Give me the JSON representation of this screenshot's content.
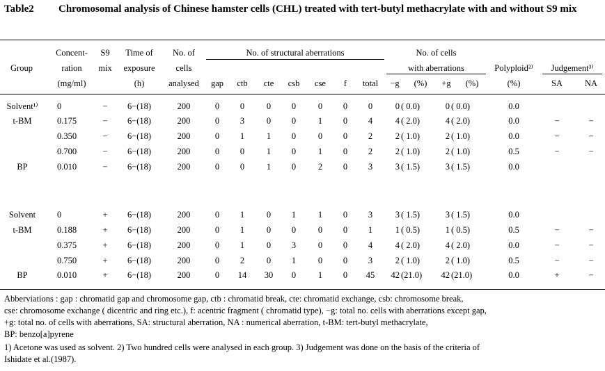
{
  "table_no": "Table2",
  "title": "Chromosomal analysis of Chinese hamster cells (CHL) treated with tert-butyl methacrylate with and without S9 mix",
  "header": {
    "group": "Group",
    "conc": [
      "Concent-",
      "ration",
      "(mg/ml)"
    ],
    "s9": [
      "S9",
      "mix"
    ],
    "time": [
      "Time of",
      "exposure",
      "(h)"
    ],
    "cells": [
      "No. of",
      "cells",
      "analysed"
    ],
    "struct_title": "No. of structural aberrations",
    "struct_cols": [
      "gap",
      "ctb",
      "cte",
      "csb",
      "cse",
      "f",
      "total"
    ],
    "with_title": [
      "No. of cells",
      "with aberrations"
    ],
    "with_cols": [
      "−g",
      "(%)",
      "+g",
      "(%)"
    ],
    "polyploid": [
      "Polyploid²⁾",
      "(%)"
    ],
    "judgement": "Judgement³⁾",
    "judge_cols": [
      "SA",
      "NA"
    ]
  },
  "rows": [
    {
      "group": "Solvent¹⁾",
      "conc": "0",
      "s9": "−",
      "time": "6−(18)",
      "cells": "200",
      "gap": "0",
      "ctb": "0",
      "cte": "0",
      "csb": "0",
      "cse": "0",
      "f": "0",
      "total": "0",
      "mg": "0",
      "mgp": "( 0.0)",
      "pg": "0",
      "pgp": "( 0.0)",
      "poly": "0.0",
      "sa": "",
      "na": ""
    },
    {
      "group": "t-BM",
      "conc": "0.175",
      "s9": "−",
      "time": "6−(18)",
      "cells": "200",
      "gap": "0",
      "ctb": "3",
      "cte": "0",
      "csb": "0",
      "cse": "1",
      "f": "0",
      "total": "4",
      "mg": "4",
      "mgp": "( 2.0)",
      "pg": "4",
      "pgp": "( 2.0)",
      "poly": "0.0",
      "sa": "−",
      "na": "−"
    },
    {
      "group": "",
      "conc": "0.350",
      "s9": "−",
      "time": "6−(18)",
      "cells": "200",
      "gap": "0",
      "ctb": "1",
      "cte": "1",
      "csb": "0",
      "cse": "0",
      "f": "0",
      "total": "2",
      "mg": "2",
      "mgp": "( 1.0)",
      "pg": "2",
      "pgp": "( 1.0)",
      "poly": "0.0",
      "sa": "−",
      "na": "−"
    },
    {
      "group": "",
      "conc": "0.700",
      "s9": "−",
      "time": "6−(18)",
      "cells": "200",
      "gap": "0",
      "ctb": "0",
      "cte": "1",
      "csb": "0",
      "cse": "1",
      "f": "0",
      "total": "2",
      "mg": "2",
      "mgp": "( 1.0)",
      "pg": "2",
      "pgp": "( 1.0)",
      "poly": "0.5",
      "sa": "−",
      "na": "−"
    },
    {
      "group": "BP",
      "conc": "0.010",
      "s9": "−",
      "time": "6−(18)",
      "cells": "200",
      "gap": "0",
      "ctb": "0",
      "cte": "1",
      "csb": "0",
      "cse": "2",
      "f": "0",
      "total": "3",
      "mg": "3",
      "mgp": "( 1.5)",
      "pg": "3",
      "pgp": "( 1.5)",
      "poly": "0.0",
      "sa": "",
      "na": ""
    },
    {
      "group": "Solvent",
      "conc": "0",
      "s9": "+",
      "time": "6−(18)",
      "cells": "200",
      "gap": "0",
      "ctb": "1",
      "cte": "0",
      "csb": "1",
      "cse": "1",
      "f": "0",
      "total": "3",
      "mg": "3",
      "mgp": "( 1.5)",
      "pg": "3",
      "pgp": "( 1.5)",
      "poly": "0.0",
      "sa": "",
      "na": ""
    },
    {
      "group": "t-BM",
      "conc": "0.188",
      "s9": "+",
      "time": "6−(18)",
      "cells": "200",
      "gap": "0",
      "ctb": "1",
      "cte": "0",
      "csb": "0",
      "cse": "0",
      "f": "0",
      "total": "1",
      "mg": "1",
      "mgp": "( 0.5)",
      "pg": "1",
      "pgp": "( 0.5)",
      "poly": "0.5",
      "sa": "−",
      "na": "−"
    },
    {
      "group": "",
      "conc": "0.375",
      "s9": "+",
      "time": "6−(18)",
      "cells": "200",
      "gap": "0",
      "ctb": "1",
      "cte": "0",
      "csb": "3",
      "cse": "0",
      "f": "0",
      "total": "4",
      "mg": "4",
      "mgp": "( 2.0)",
      "pg": "4",
      "pgp": "( 2.0)",
      "poly": "0.0",
      "sa": "−",
      "na": "−"
    },
    {
      "group": "",
      "conc": "0.750",
      "s9": "+",
      "time": "6−(18)",
      "cells": "200",
      "gap": "0",
      "ctb": "2",
      "cte": "0",
      "csb": "1",
      "cse": "0",
      "f": "0",
      "total": "3",
      "mg": "2",
      "mgp": "( 1.0)",
      "pg": "2",
      "pgp": "( 1.0)",
      "poly": "0.5",
      "sa": "−",
      "na": "−"
    },
    {
      "group": "BP",
      "conc": "0.010",
      "s9": "+",
      "time": "6−(18)",
      "cells": "200",
      "gap": "0",
      "ctb": "14",
      "cte": "30",
      "csb": "0",
      "cse": "1",
      "f": "0",
      "total": "45",
      "mg": "42",
      "mgp": "(21.0)",
      "pg": "42",
      "pgp": "(21.0)",
      "poly": "0.0",
      "sa": "+",
      "na": "−"
    }
  ],
  "footnotes": [
    "Abberviations : gap : chromatid gap and chromosome gap, ctb : chromatid break, cte: chromatid exchange, csb: chromosome break,",
    "cse: chromosome exchange ( dicentric and ring etc.), f: acentric fragment ( chromatid type), −g: total no. cells with aberrations except gap,",
    "+g: total no. of cells with aberrations, SA: structural aberration, NA : numerical aberration, t-BM: tert-butyl methacrylate,",
    "BP: benzo[a]pyrene",
    "1) Acetone was used as solvent.   2) Two hundred cells were analysed in each group.   3) Judgement was done on the basis of the criteria of",
    "Ishidate et al.(1987)."
  ]
}
